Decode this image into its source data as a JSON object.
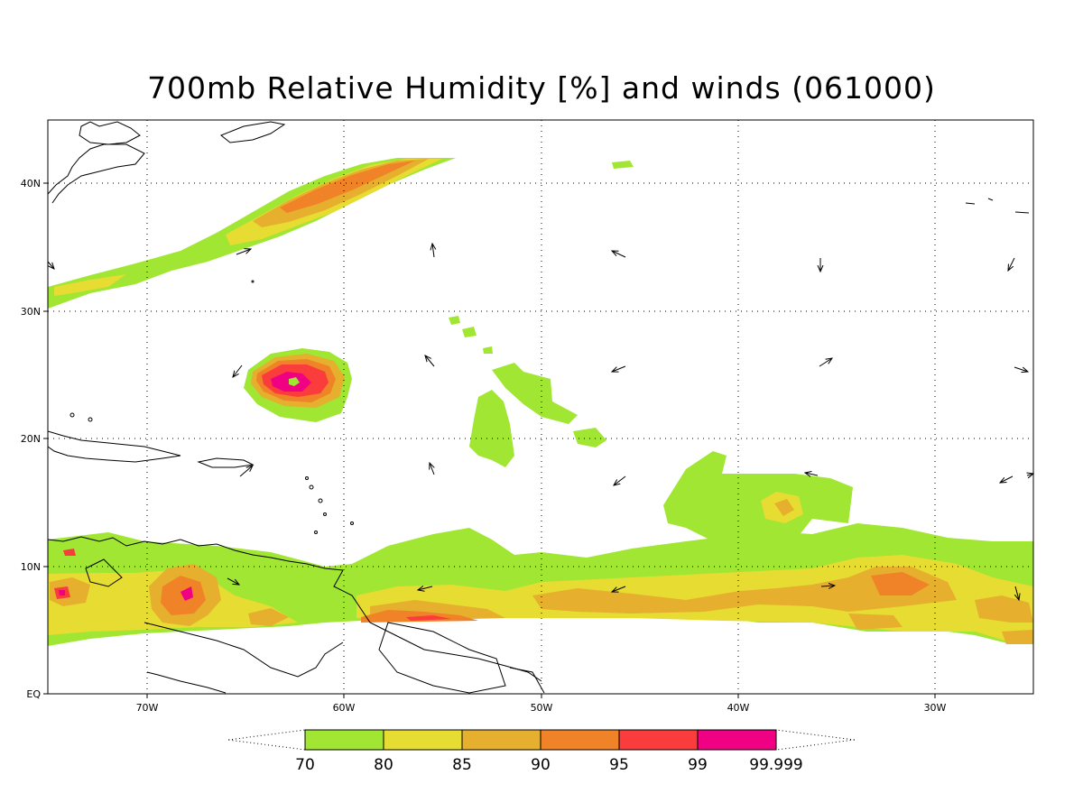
{
  "title": "700mb Relative Humidity [%] and winds (061000)",
  "map": {
    "lon_range": [
      -75,
      -25
    ],
    "lat_range": [
      0,
      45
    ],
    "lat_ticks": [
      "40N",
      "30N",
      "20N",
      "10N",
      "EQ"
    ],
    "lon_ticks": [
      "70W",
      "60W",
      "50W",
      "40W",
      "30W"
    ],
    "grid": "dotted"
  },
  "colorbar": {
    "levels": [
      "70",
      "80",
      "85",
      "90",
      "95",
      "99",
      "99.999"
    ],
    "colors": [
      "#a0e632",
      "#e6dc32",
      "#e6af2d",
      "#f08228",
      "#fa3c3c",
      "#f00082"
    ]
  }
}
